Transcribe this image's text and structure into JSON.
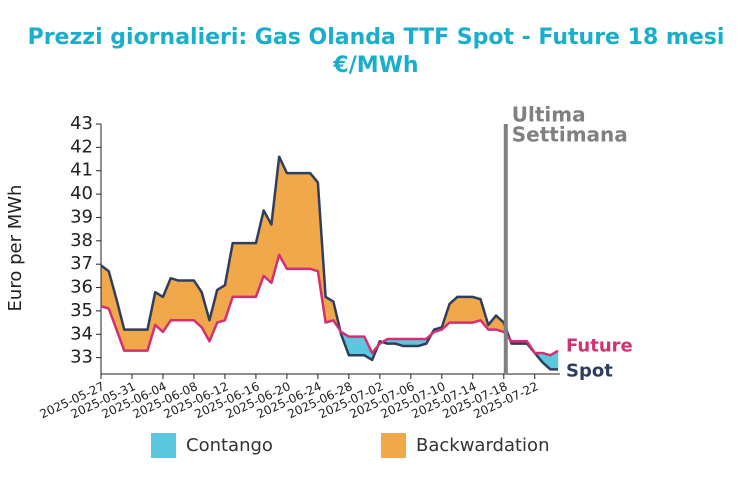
{
  "chart_data": {
    "type": "line",
    "title": [
      "Prezzi giornalieri: Gas Olanda TTF Spot - Future 18 mesi",
      "€/MWh"
    ],
    "ylabel": "Euro per MWh",
    "x": [
      "2025-05-27",
      "2025-05-28",
      "2025-05-29",
      "2025-05-30",
      "2025-05-31",
      "2025-06-01",
      "2025-06-02",
      "2025-06-03",
      "2025-06-04",
      "2025-06-05",
      "2025-06-06",
      "2025-06-07",
      "2025-06-08",
      "2025-06-09",
      "2025-06-10",
      "2025-06-11",
      "2025-06-12",
      "2025-06-13",
      "2025-06-14",
      "2025-06-15",
      "2025-06-16",
      "2025-06-17",
      "2025-06-18",
      "2025-06-19",
      "2025-06-20",
      "2025-06-21",
      "2025-06-22",
      "2025-06-23",
      "2025-06-24",
      "2025-06-25",
      "2025-06-26",
      "2025-06-27",
      "2025-06-28",
      "2025-06-29",
      "2025-06-30",
      "2025-07-01",
      "2025-07-02",
      "2025-07-03",
      "2025-07-04",
      "2025-07-05",
      "2025-07-06",
      "2025-07-07",
      "2025-07-08",
      "2025-07-09",
      "2025-07-10",
      "2025-07-11",
      "2025-07-12",
      "2025-07-13",
      "2025-07-14",
      "2025-07-15",
      "2025-07-16",
      "2025-07-17",
      "2025-07-18",
      "2025-07-19",
      "2025-07-20",
      "2025-07-21",
      "2025-07-22",
      "2025-07-23",
      "2025-07-24",
      "2025-07-25"
    ],
    "series": [
      {
        "name": "Spot",
        "color": "#2d3e5e",
        "values": [
          36.95,
          36.7,
          35.5,
          34.2,
          34.2,
          34.2,
          34.2,
          35.8,
          35.6,
          36.4,
          36.3,
          36.3,
          36.3,
          35.8,
          34.6,
          35.9,
          36.1,
          37.9,
          37.9,
          37.9,
          37.9,
          39.3,
          38.7,
          41.6,
          40.9,
          40.9,
          40.9,
          40.9,
          40.5,
          35.6,
          35.4,
          34.0,
          33.1,
          33.1,
          33.1,
          32.9,
          33.7,
          33.6,
          33.6,
          33.5,
          33.5,
          33.5,
          33.6,
          34.2,
          34.3,
          35.3,
          35.6,
          35.6,
          35.6,
          35.5,
          34.4,
          34.8,
          34.5,
          33.6,
          33.6,
          33.6,
          33.2,
          32.8,
          32.5,
          32.5
        ]
      },
      {
        "name": "Future",
        "color": "#d42f72",
        "values": [
          35.2,
          35.1,
          34.2,
          33.3,
          33.3,
          33.3,
          33.3,
          34.4,
          34.1,
          34.6,
          34.6,
          34.6,
          34.6,
          34.3,
          33.7,
          34.5,
          34.6,
          35.6,
          35.6,
          35.6,
          35.6,
          36.5,
          36.2,
          37.4,
          36.8,
          36.8,
          36.8,
          36.8,
          36.7,
          34.5,
          34.6,
          34.1,
          33.9,
          33.9,
          33.9,
          33.2,
          33.6,
          33.8,
          33.8,
          33.8,
          33.8,
          33.8,
          33.8,
          34.1,
          34.2,
          34.5,
          34.5,
          34.5,
          34.5,
          34.6,
          34.2,
          34.2,
          34.1,
          33.7,
          33.7,
          33.7,
          33.2,
          33.2,
          33.1,
          33.3
        ]
      }
    ],
    "fills": [
      {
        "name": "Contango",
        "color": "#5bc8e0"
      },
      {
        "name": "Backwardation",
        "color": "#f0a84a"
      }
    ],
    "xlim": [
      "2025-05-27",
      "2025-07-25"
    ],
    "xticks": [
      "2025-05-27",
      "2025-05-31",
      "2025-06-04",
      "2025-06-08",
      "2025-06-12",
      "2025-06-16",
      "2025-06-20",
      "2025-06-24",
      "2025-06-28",
      "2025-07-02",
      "2025-07-06",
      "2025-07-10",
      "2025-07-14",
      "2025-07-18",
      "2025-07-22"
    ],
    "ylim": [
      32.3,
      43
    ],
    "yticks": [
      33,
      34,
      35,
      36,
      37,
      38,
      39,
      40,
      41,
      42,
      43
    ],
    "annotation": {
      "x": "2025-07-18",
      "text": [
        "Ultima",
        "Settimana"
      ],
      "color": "#808080"
    }
  }
}
